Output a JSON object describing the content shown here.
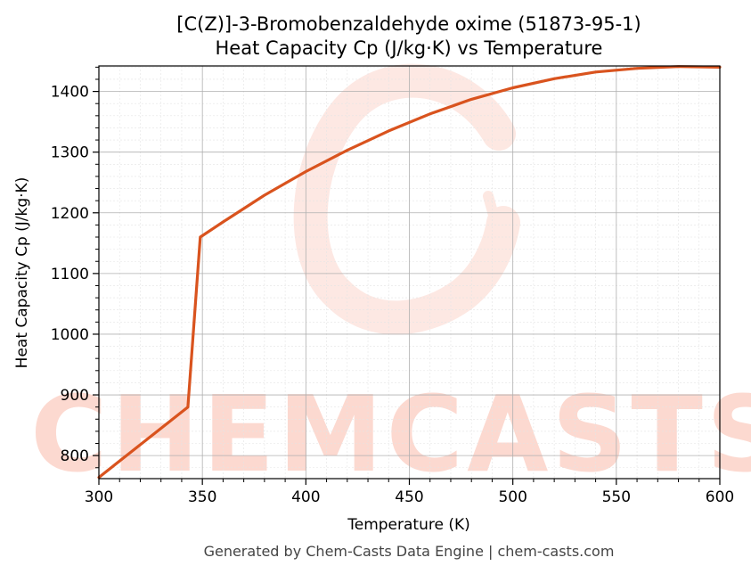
{
  "chart_data": {
    "type": "line",
    "title": "[C(Z)]-3-Bromobenzaldehyde oxime (51873-95-1)",
    "subtitle": "Heat Capacity Cp (J/kg·K) vs Temperature",
    "xlabel": "Temperature (K)",
    "ylabel": "Heat Capacity Cp (J/kg·K)",
    "xlim": [
      300,
      600
    ],
    "ylim": [
      762,
      1442
    ],
    "x_ticks": [
      300,
      350,
      400,
      450,
      500,
      550,
      600
    ],
    "y_ticks": [
      800,
      900,
      1000,
      1100,
      1200,
      1300,
      1400
    ],
    "grid": true,
    "line_color": "#d9531e",
    "series": [
      {
        "x": [
          300,
          343,
          349,
          360,
          380,
          400,
          420,
          440,
          460,
          480,
          500,
          520,
          540,
          560,
          580,
          600
        ],
        "y": [
          764,
          880,
          1160,
          1185,
          1229,
          1268,
          1303,
          1335,
          1363,
          1387,
          1406,
          1421,
          1432,
          1438,
          1441,
          1440
        ]
      }
    ]
  },
  "watermark": {
    "text": "CHEMCASTS",
    "color": "#fcd9d0"
  },
  "footer": "Generated by Chem-Casts Data Engine | chem-casts.com"
}
